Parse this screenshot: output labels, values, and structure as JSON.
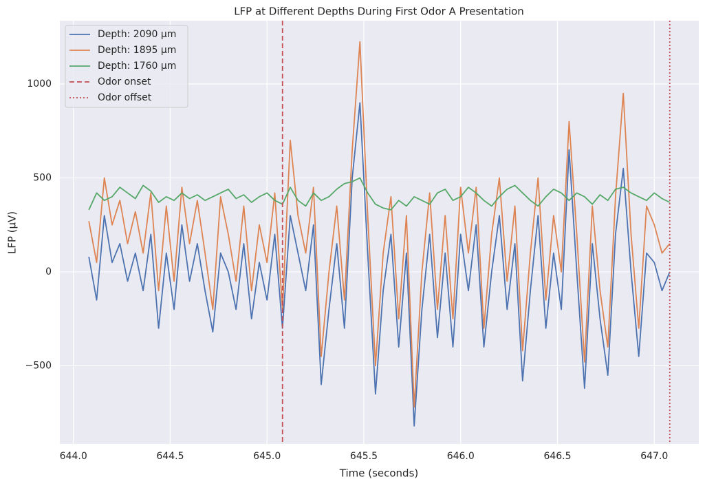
{
  "chart_data": {
    "type": "line",
    "title": "LFP at Different Depths During First Odor A Presentation",
    "xlabel": "Time (seconds)",
    "ylabel": "LFP (µV)",
    "xlim": [
      643.93,
      647.23
    ],
    "ylim": [
      -916,
      1337
    ],
    "xticks": [
      {
        "value": 644,
        "label": "644.0"
      },
      644.5,
      {
        "value": 645,
        "label": "645.0"
      },
      645.5,
      {
        "value": 646,
        "label": "646.0"
      },
      646.5,
      {
        "value": 647,
        "label": "647.0"
      }
    ],
    "yticks": [
      {
        "value": -500,
        "label": "−500"
      },
      0,
      500,
      1000
    ],
    "grid": true,
    "legend": "upper left",
    "x": [
      644.08,
      644.12,
      644.16,
      644.2,
      644.24,
      644.28,
      644.32,
      644.36,
      644.4,
      644.44,
      644.48,
      644.52,
      644.56,
      644.6,
      644.64,
      644.68,
      644.72,
      644.76,
      644.8,
      644.84,
      644.88,
      644.92,
      644.96,
      645.0,
      645.04,
      645.08,
      645.12,
      645.16,
      645.2,
      645.24,
      645.28,
      645.32,
      645.36,
      645.4,
      645.44,
      645.48,
      645.52,
      645.56,
      645.6,
      645.64,
      645.68,
      645.72,
      645.76,
      645.8,
      645.84,
      645.88,
      645.92,
      645.96,
      646.0,
      646.04,
      646.08,
      646.12,
      646.16,
      646.2,
      646.24,
      646.28,
      646.32,
      646.36,
      646.4,
      646.44,
      646.48,
      646.52,
      646.56,
      646.6,
      646.64,
      646.68,
      646.72,
      646.76,
      646.8,
      646.84,
      646.88,
      646.92,
      646.96,
      647.0,
      647.04,
      647.08
    ],
    "series": [
      {
        "name": "Depth: 2090 µm",
        "color": "#4c72b0",
        "values": [
          80,
          -150,
          300,
          50,
          150,
          -50,
          100,
          -100,
          200,
          -300,
          100,
          -200,
          250,
          -50,
          150,
          -100,
          -320,
          100,
          0,
          -200,
          150,
          -250,
          50,
          -150,
          200,
          -300,
          300,
          100,
          -100,
          250,
          -600,
          -200,
          150,
          -300,
          500,
          900,
          100,
          -650,
          -100,
          200,
          -400,
          100,
          -820,
          -200,
          200,
          -350,
          100,
          -400,
          200,
          -100,
          250,
          -400,
          0,
          300,
          -200,
          150,
          -580,
          -100,
          300,
          -300,
          100,
          -200,
          650,
          0,
          -620,
          150,
          -250,
          -550,
          200,
          550,
          0,
          -450,
          100,
          50,
          -100,
          0
        ]
      },
      {
        "name": "Depth: 1895 µm",
        "color": "#dd8452",
        "values": [
          270,
          50,
          500,
          250,
          380,
          150,
          320,
          100,
          420,
          -100,
          350,
          -50,
          450,
          150,
          380,
          100,
          -200,
          400,
          200,
          -50,
          350,
          -100,
          250,
          50,
          420,
          -200,
          700,
          300,
          100,
          450,
          -450,
          0,
          350,
          -150,
          650,
          1225,
          300,
          -500,
          100,
          400,
          -250,
          300,
          -720,
          0,
          420,
          -200,
          300,
          -250,
          450,
          100,
          450,
          -300,
          200,
          500,
          -50,
          350,
          -420,
          100,
          500,
          -150,
          300,
          0,
          800,
          200,
          -480,
          350,
          -100,
          -400,
          400,
          950,
          200,
          -300,
          350,
          250,
          100,
          150
        ]
      },
      {
        "name": "Depth: 1760 µm",
        "color": "#55a868",
        "values": [
          330,
          420,
          380,
          400,
          450,
          420,
          390,
          460,
          430,
          370,
          400,
          380,
          420,
          390,
          410,
          380,
          400,
          420,
          440,
          390,
          410,
          370,
          400,
          420,
          380,
          360,
          450,
          380,
          350,
          420,
          380,
          400,
          440,
          470,
          480,
          500,
          420,
          360,
          340,
          330,
          380,
          350,
          400,
          380,
          360,
          420,
          440,
          380,
          400,
          450,
          420,
          380,
          350,
          400,
          440,
          460,
          420,
          380,
          350,
          400,
          440,
          420,
          380,
          420,
          400,
          360,
          410,
          380,
          440,
          450,
          420,
          400,
          380,
          420,
          390,
          370
        ]
      }
    ],
    "vlines": [
      {
        "name": "Odor onset",
        "x": 645.08,
        "color": "#c44e52",
        "style": "dashed"
      },
      {
        "name": "Odor offset",
        "x": 647.08,
        "color": "#c44e52",
        "style": "dotted"
      }
    ]
  }
}
